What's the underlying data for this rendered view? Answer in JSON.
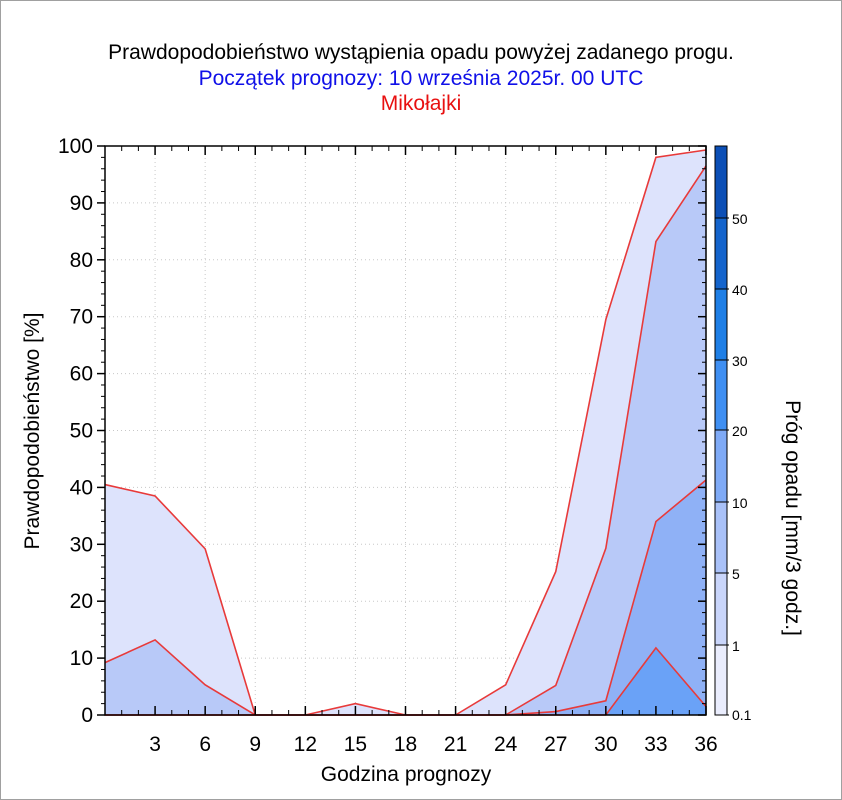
{
  "titles": {
    "line1": "Prawdopodobieństwo wystąpienia opadu powyżej zadanego progu.",
    "line2": "Początek prognozy: 10 września 2025r. 00 UTC",
    "line3": "Mikołajki"
  },
  "colors": {
    "title_line1": "#000000",
    "title_line2": "#1010e8",
    "title_line3": "#e81010",
    "outline": "#e83a3a"
  },
  "chart_data": {
    "type": "area",
    "xlabel": "Godzina prognozy",
    "ylabel": "Prawdopodobieństwo [%]",
    "x": [
      0,
      3,
      6,
      9,
      12,
      15,
      18,
      21,
      24,
      27,
      30,
      33,
      36
    ],
    "xticks": [
      3,
      6,
      9,
      12,
      15,
      18,
      21,
      24,
      27,
      30,
      33,
      36
    ],
    "xlim": [
      0,
      36
    ],
    "ylim": [
      0,
      100
    ],
    "yticks": [
      0,
      10,
      20,
      30,
      40,
      50,
      60,
      70,
      80,
      90,
      100
    ],
    "series": [
      {
        "threshold": 0.1,
        "color": "#dde3fc",
        "values": [
          40.5,
          38.5,
          29.2,
          0,
          0,
          2,
          0,
          0,
          5.3,
          25.2,
          69.5,
          98,
          99.3
        ]
      },
      {
        "threshold": 1,
        "color": "#b8c9f8",
        "values": [
          9.2,
          13.2,
          5.3,
          0,
          0,
          0,
          0,
          0,
          0,
          5.2,
          29.3,
          83.2,
          96.5
        ]
      },
      {
        "threshold": 5,
        "color": "#8fb1f6",
        "values": [
          0,
          0,
          0,
          0,
          0,
          0,
          0,
          0,
          0,
          0.6,
          2.5,
          34,
          41.3
        ]
      },
      {
        "threshold": 10,
        "color": "#6aa2f7",
        "values": [
          0,
          0,
          0,
          0,
          0,
          0,
          0,
          0,
          0,
          0,
          0,
          11.8,
          1.5
        ]
      }
    ],
    "colorbar": {
      "title": "Próg opadu [mm/3 godz.]",
      "tick_labels": [
        "0.1",
        "1",
        "5",
        "10",
        "20",
        "30",
        "40",
        "50"
      ],
      "bands": [
        {
          "from": "0.1",
          "to": "1",
          "color": "#eaedfd"
        },
        {
          "from": "1",
          "to": "5",
          "color": "#c9d5fa"
        },
        {
          "from": "5",
          "to": "10",
          "color": "#a9c1f8"
        },
        {
          "from": "10",
          "to": "20",
          "color": "#7faaf6"
        },
        {
          "from": "20",
          "to": "30",
          "color": "#3f8ff2"
        },
        {
          "from": "30",
          "to": "40",
          "color": "#1f7fe6"
        },
        {
          "from": "40",
          "to": "50",
          "color": "#1464cc"
        },
        {
          "from": "50",
          "to": "",
          "color": "#0c4fb6"
        }
      ]
    }
  }
}
